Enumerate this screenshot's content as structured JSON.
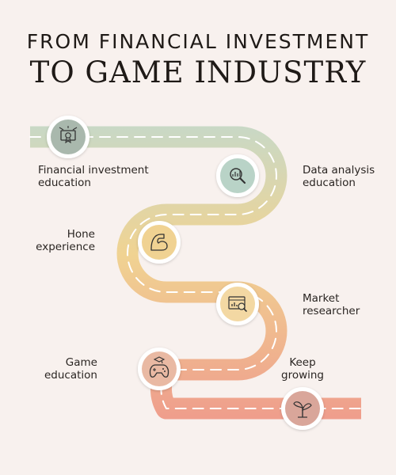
{
  "header": {
    "title_line1": "FROM FINANCIAL INVESTMENT",
    "title_line2": "TO GAME INDUSTRY"
  },
  "steps": [
    {
      "line1": "Financial investment",
      "line2": "education",
      "icon": "certificate-icon",
      "color": "#a9b8ad"
    },
    {
      "line1": "Data analysis",
      "line2": "education",
      "icon": "data-analysis-icon",
      "color": "#b9d3c7"
    },
    {
      "line1": "Hone",
      "line2": "experience",
      "icon": "flexed-arm-icon",
      "color": "#f0d292"
    },
    {
      "line1": "Market",
      "line2": "researcher",
      "icon": "market-chart-icon",
      "color": "#f3d8a3"
    },
    {
      "line1": "Game",
      "line2": "education",
      "icon": "gamepad-icon",
      "color": "#e9b9a3"
    },
    {
      "line1": "Keep",
      "line2": "growing",
      "icon": "sprout-icon",
      "color": "#d9a69a"
    }
  ],
  "colors": {
    "road_start": "#c6d9c9",
    "road_mid": "#f0d392",
    "road_end": "#ef9d8c",
    "background": "#f8f1ee"
  }
}
